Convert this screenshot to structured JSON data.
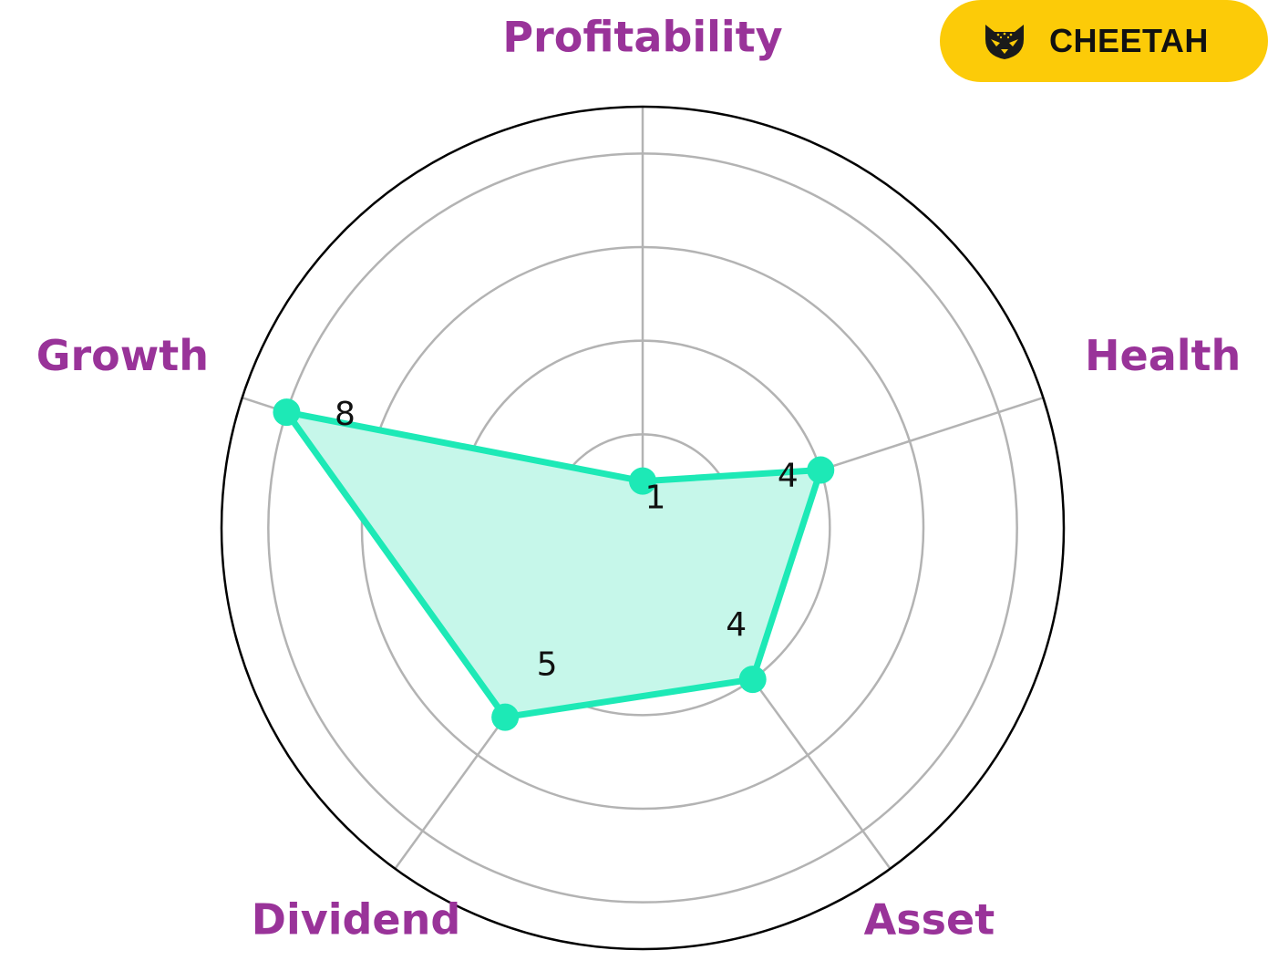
{
  "chart_data": {
    "type": "radar",
    "axes": [
      "Profitability",
      "Health",
      "Asset",
      "Dividend",
      "Growth"
    ],
    "values": [
      1,
      4,
      4,
      5,
      8
    ],
    "value_labels": [
      "1",
      "4",
      "4",
      "5",
      "8"
    ],
    "rmax": 9,
    "rings": [
      2,
      4,
      6,
      8
    ],
    "grid": true
  },
  "colors": {
    "series": "#1de9b6",
    "fill": "#c6f7ea",
    "axis_label": "#993399",
    "grid": "#b3b3b3",
    "badge": "#fccb08"
  },
  "badge": {
    "text": "CHEETAH",
    "icon": "cheetah-icon"
  }
}
